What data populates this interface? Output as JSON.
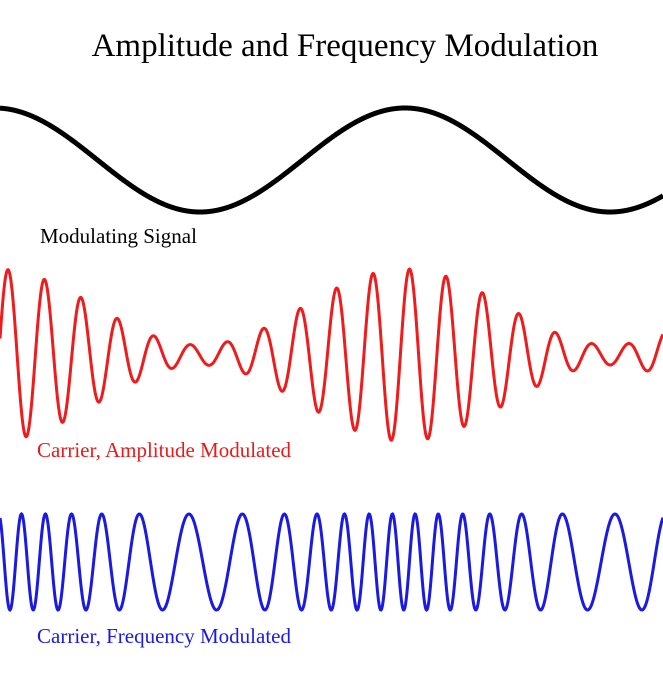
{
  "title": "Amplitude and Frequency Modulation",
  "labels": {
    "modulating": "Modulating Signal",
    "am": "Carrier, Amplitude Modulated",
    "fm": "Carrier, Frequency Modulated"
  }
}
